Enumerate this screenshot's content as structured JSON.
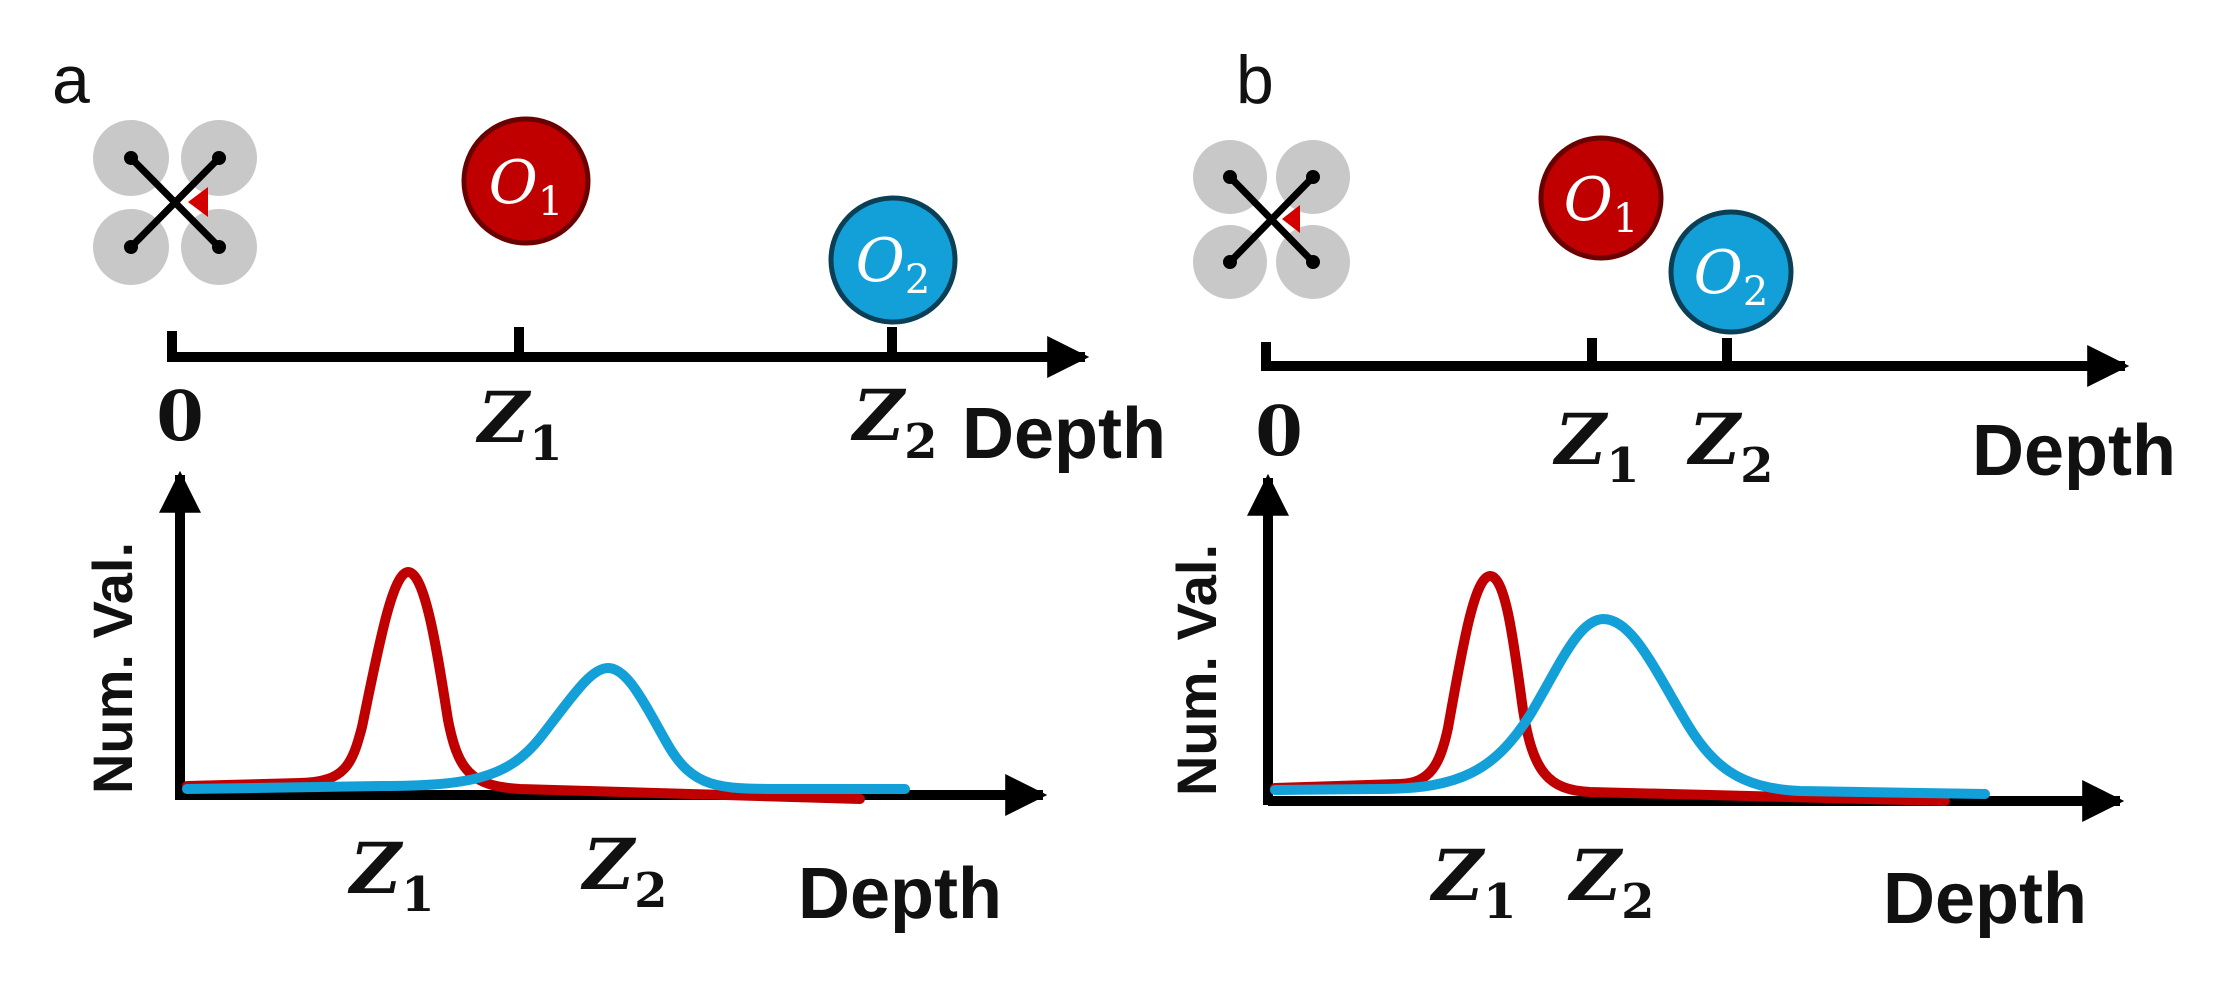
{
  "panels": [
    {
      "letter": "a",
      "axis_zero": "0",
      "z1": {
        "main": "Z",
        "sub": "1"
      },
      "z2": {
        "main": "Z",
        "sub": "2"
      },
      "depth_label": "Depth",
      "o1": {
        "main": "O",
        "sub": "1"
      },
      "o2": {
        "main": "O",
        "sub": "2"
      },
      "plot": {
        "ylabel": "Num. Val.",
        "xlabel": "Depth",
        "z1": {
          "main": "Z",
          "sub": "1"
        },
        "z2": {
          "main": "Z",
          "sub": "2"
        }
      }
    },
    {
      "letter": "b",
      "axis_zero": "0",
      "z1": {
        "main": "Z",
        "sub": "1"
      },
      "z2": {
        "main": "Z",
        "sub": "2"
      },
      "depth_label": "Depth",
      "o1": {
        "main": "O",
        "sub": "1"
      },
      "o2": {
        "main": "O",
        "sub": "2"
      },
      "plot": {
        "ylabel": "Num. Val.",
        "xlabel": "Depth",
        "z1": {
          "main": "Z",
          "sub": "1"
        },
        "z2": {
          "main": "Z",
          "sub": "2"
        }
      }
    }
  ],
  "colors": {
    "object1": "#c00000",
    "object2": "#13a0d8",
    "drone_rotor": "#c8c8c8",
    "drone_heading": "#d40000",
    "axis": "#000000"
  }
}
